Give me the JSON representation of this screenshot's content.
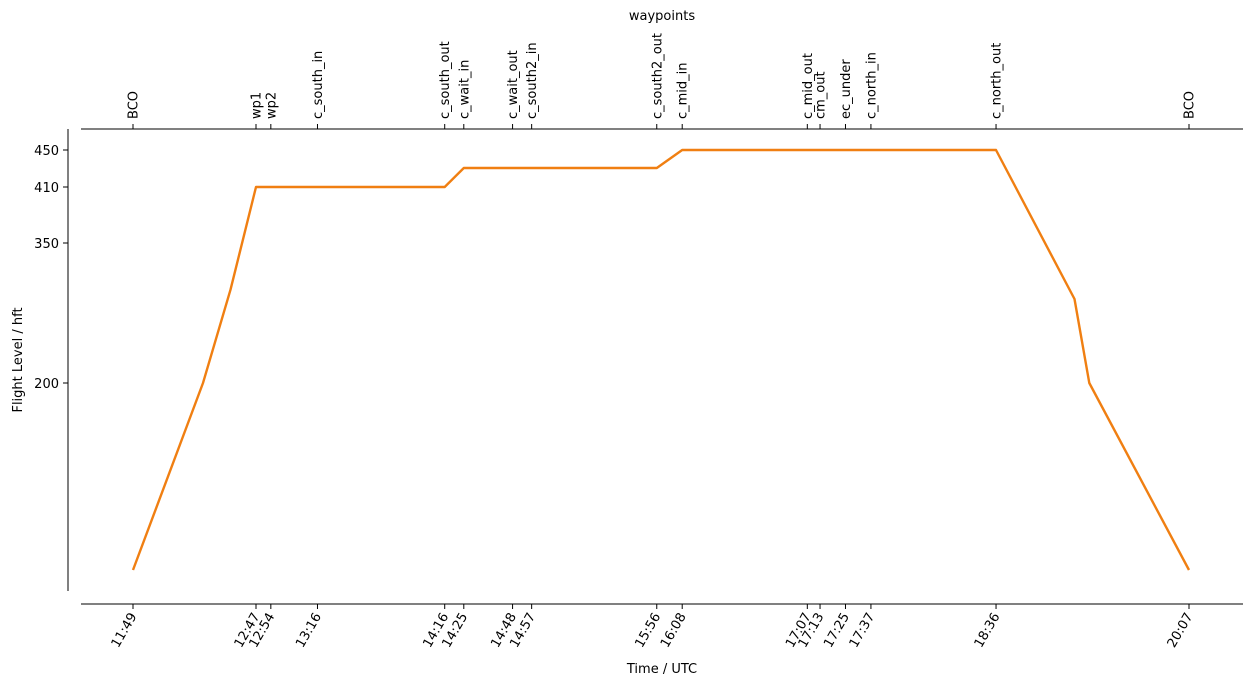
{
  "chart_data": {
    "type": "line",
    "title": "waypoints",
    "xlabel": "Time / UTC",
    "ylabel": "Flight Level / hft",
    "y_ticks": [
      200,
      350,
      410,
      450
    ],
    "ylim": [
      0,
      450
    ],
    "x_ticks": [
      "11:49",
      "12:47",
      "12:54",
      "13:16",
      "14:16",
      "14:25",
      "14:48",
      "14:57",
      "15:56",
      "16:08",
      "17:07",
      "17:13",
      "17:25",
      "17:37",
      "18:36",
      "20:07"
    ],
    "waypoints": [
      {
        "name": "BCO",
        "time": "11:49"
      },
      {
        "name": "wp1",
        "time": "12:47"
      },
      {
        "name": "wp2",
        "time": "12:54"
      },
      {
        "name": "c_south_in",
        "time": "13:16"
      },
      {
        "name": "c_south_out",
        "time": "14:16"
      },
      {
        "name": "c_wait_in",
        "time": "14:25"
      },
      {
        "name": "c_wait_out",
        "time": "14:48"
      },
      {
        "name": "c_south2_in",
        "time": "14:57"
      },
      {
        "name": "c_south2_out",
        "time": "15:56"
      },
      {
        "name": "c_mid_in",
        "time": "16:08"
      },
      {
        "name": "c_mid_out",
        "time": "17:07"
      },
      {
        "name": "cm_out",
        "time": "17:13"
      },
      {
        "name": "ec_under",
        "time": "17:25"
      },
      {
        "name": "c_north_in",
        "time": "17:37"
      },
      {
        "name": "c_north_out",
        "time": "18:36"
      },
      {
        "name": "BCO",
        "time": "20:07"
      }
    ],
    "series": [
      {
        "color": "#f07f12",
        "points": [
          {
            "x": "11:49",
            "y": 0
          },
          {
            "x": "12:22",
            "y": 200
          },
          {
            "x": "12:35",
            "y": 300
          },
          {
            "x": "12:47",
            "y": 410
          },
          {
            "x": "14:16",
            "y": 410
          },
          {
            "x": "14:25",
            "y": 430
          },
          {
            "x": "15:56",
            "y": 430
          },
          {
            "x": "16:08",
            "y": 450
          },
          {
            "x": "18:36",
            "y": 450
          },
          {
            "x": "19:13",
            "y": 290
          },
          {
            "x": "19:20",
            "y": 200
          },
          {
            "x": "20:07",
            "y": 0
          }
        ]
      }
    ],
    "grid": false
  }
}
